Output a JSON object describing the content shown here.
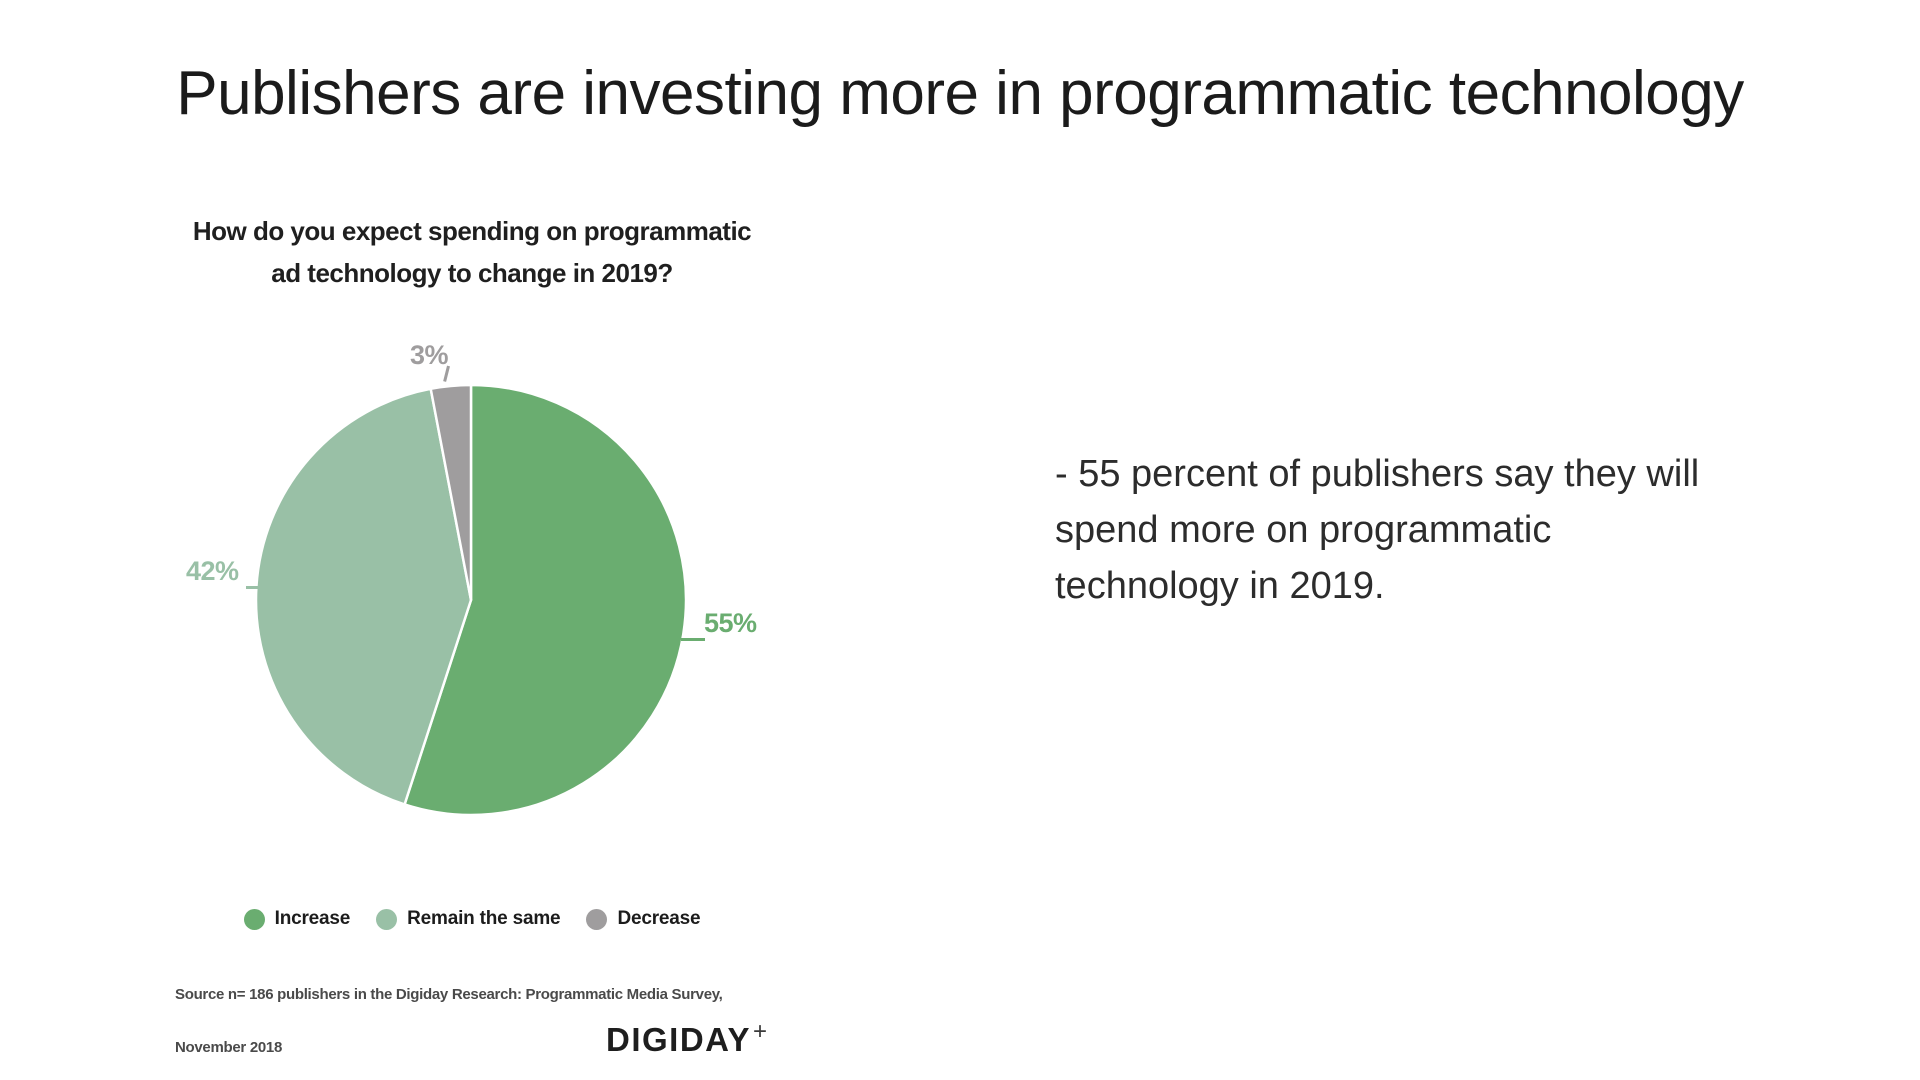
{
  "title": "Publishers are investing more in programmatic technology",
  "note": {
    "text": "- 55 percent of publishers say they will spend more on programmatic technology in 2019.",
    "lines": [
      "- 55 percent of publishers say they will",
      "spend more on programmatic",
      "technology in 2019."
    ]
  },
  "chart_data": {
    "type": "pie",
    "title": "How do you expect spending on programmatic ad technology to change in 2019?",
    "title_lines": [
      "How do you expect spending on programmatic",
      "ad technology to change in 2019?"
    ],
    "categories": [
      "Increase",
      "Remain the same",
      "Decrease"
    ],
    "values": [
      55,
      42,
      3
    ],
    "value_labels": [
      "55%",
      "42%",
      "3%"
    ],
    "colors": [
      "#6aad70",
      "#99c0a6",
      "#9f9d9e"
    ],
    "start_angle_deg": 0,
    "direction": "clockwise",
    "legend_position": "bottom",
    "slice_border_color": "#ffffff"
  },
  "source": {
    "line1": "Source n= 186 publishers in the Digiday Research: Programmatic Media Survey,",
    "line2": "November 2018"
  },
  "branding": {
    "logo_text": "DIGIDAY",
    "logo_plus": "+"
  }
}
